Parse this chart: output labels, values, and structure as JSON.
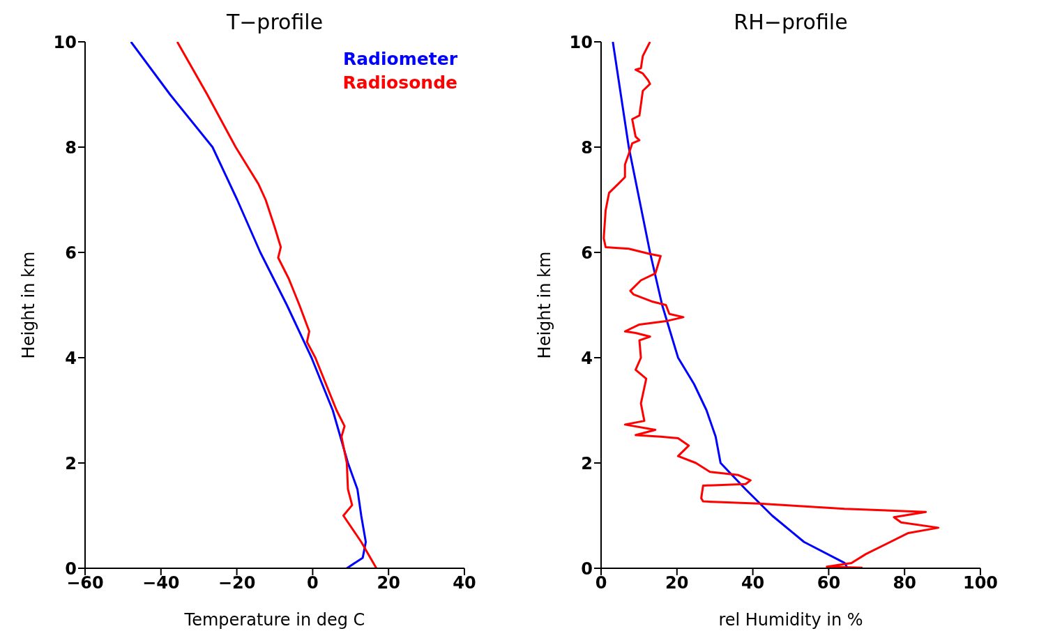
{
  "chart_data": [
    {
      "type": "line",
      "title": "T−profile",
      "xlabel": "Temperature in deg C",
      "ylabel": "Height in km",
      "xlim": [
        -60,
        40
      ],
      "xticks": [
        -60,
        -40,
        -20,
        0,
        20,
        40
      ],
      "ylim": [
        0,
        10
      ],
      "yticks": [
        0,
        2,
        4,
        6,
        8,
        10
      ],
      "legend": "top right",
      "line_style": "solid",
      "series": [
        {
          "name": "Radiometer",
          "color": "#0000ff",
          "x": [
            9,
            13.2,
            14,
            12.8,
            11.8,
            9.3,
            5.3,
            -0.3,
            -6.8,
            -13.8,
            -19.9,
            -26.4,
            -37.6,
            -47.9
          ],
          "values": [
            0,
            0.2,
            0.5,
            1,
            1.5,
            2,
            3,
            4,
            5,
            6,
            7,
            8,
            9,
            10
          ]
        },
        {
          "name": "Radiosonde",
          "color": "#ff0000",
          "x": [
            16.8,
            12.8,
            8.1,
            10.4,
            9.3,
            9,
            7.6,
            8.4,
            6.3,
            3.5,
            0.7,
            -1.5,
            -0.9,
            -3.5,
            -6.3,
            -9.1,
            -8.4,
            -10.1,
            -12.4,
            -14.3,
            -20.3,
            -27.8,
            -35.7
          ],
          "values": [
            0,
            0.5,
            1,
            1.2,
            1.5,
            2,
            2.5,
            2.7,
            3,
            3.5,
            4,
            4.3,
            4.5,
            5,
            5.5,
            5.9,
            6.1,
            6.5,
            7,
            7.3,
            8,
            9,
            10
          ]
        }
      ]
    },
    {
      "type": "line",
      "title": "RH−profile",
      "xlabel": "rel Humidity in %",
      "ylabel": "Height in km",
      "xlim": [
        0,
        100
      ],
      "xticks": [
        0,
        20,
        40,
        60,
        80,
        100
      ],
      "ylim": [
        0,
        10
      ],
      "yticks": [
        0,
        2,
        4,
        6,
        8,
        10
      ],
      "line_style": "solid",
      "series": [
        {
          "color": "#0000ff",
          "x": [
            65,
            64.2,
            53.5,
            45.1,
            38.1,
            31.5,
            30.2,
            27.8,
            24.5,
            20.3,
            16.1,
            12.9,
            10.1,
            7.3,
            3.1
          ],
          "values": [
            0,
            0.1,
            0.5,
            1,
            1.5,
            2,
            2.5,
            3,
            3.5,
            4,
            5,
            6,
            7,
            8,
            10
          ]
        },
        {
          "color": "#ff0000",
          "x": [
            68.9,
            59.5,
            66,
            69.8,
            81,
            88.9,
            79.1,
            77.2,
            85.6,
            64.2,
            41.8,
            26.9,
            26.4,
            26.9,
            38.1,
            39.4,
            36.2,
            28.7,
            25,
            20.3,
            23.1,
            20.3,
            15.7,
            9.1,
            14.3,
            6.3,
            11.4,
            10.5,
            11.9,
            9.1,
            10.5,
            10.1,
            12.9,
            9.1,
            6.3,
            10.1,
            17.5,
            21.7,
            18,
            17.1,
            13.3,
            8.6,
            7.7,
            10.5,
            14.3,
            15.7,
            12.9,
            7.3,
            1.2,
            0.7,
            1.2,
            2.1,
            4.5,
            6.3,
            6.3,
            7.3,
            8.2,
            10.1,
            9.1,
            8.2,
            10.1,
            11,
            12.9,
            12.4,
            11,
            9.1,
            10.5,
            11,
            12.9
          ],
          "values": [
            0.01,
            0.03,
            0.1,
            0.27,
            0.67,
            0.77,
            0.87,
            0.97,
            1.07,
            1.13,
            1.23,
            1.27,
            1.33,
            1.57,
            1.6,
            1.67,
            1.77,
            1.83,
            2,
            2.13,
            2.33,
            2.47,
            2.5,
            2.53,
            2.63,
            2.73,
            2.8,
            3.13,
            3.6,
            3.77,
            4,
            4.33,
            4.4,
            4.47,
            4.5,
            4.63,
            4.7,
            4.77,
            4.83,
            5,
            5.07,
            5.2,
            5.27,
            5.47,
            5.6,
            5.93,
            5.97,
            6.07,
            6.1,
            6.27,
            6.8,
            7.13,
            7.3,
            7.43,
            7.67,
            7.87,
            8.07,
            8.13,
            8.2,
            8.53,
            8.6,
            9.07,
            9.2,
            9.27,
            9.4,
            9.47,
            9.5,
            9.73,
            10
          ]
        }
      ]
    }
  ]
}
